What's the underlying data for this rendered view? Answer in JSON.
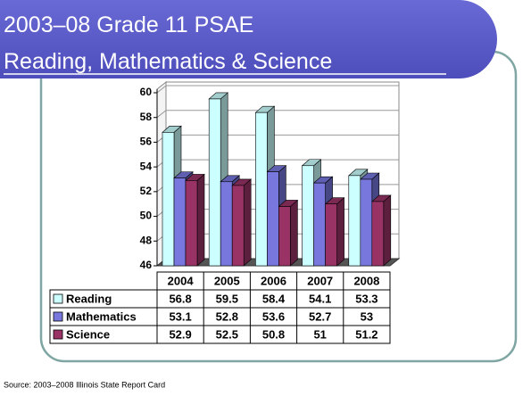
{
  "chart_data": {
    "type": "bar3d",
    "title": "2003–08 Grade 11 PSAE",
    "subtitle": "Reading, Mathematics & Science",
    "source": "Source: 2003–2008 Illinois State Report Card",
    "categories": [
      "2004",
      "2005",
      "2006",
      "2007",
      "2008"
    ],
    "series": [
      {
        "name": "Reading",
        "color": "#ccffff",
        "values": [
          56.8,
          59.5,
          58.4,
          54.1,
          53.3
        ]
      },
      {
        "name": "Mathematics",
        "color": "#7777dd",
        "values": [
          53.1,
          52.8,
          53.6,
          52.7,
          53
        ]
      },
      {
        "name": "Science",
        "color": "#993366",
        "values": [
          52.9,
          52.5,
          50.8,
          51,
          51.2
        ]
      }
    ],
    "ylim": [
      46,
      60
    ],
    "yticks": [
      46,
      48,
      50,
      52,
      54,
      56,
      58,
      60
    ],
    "grid": true
  }
}
